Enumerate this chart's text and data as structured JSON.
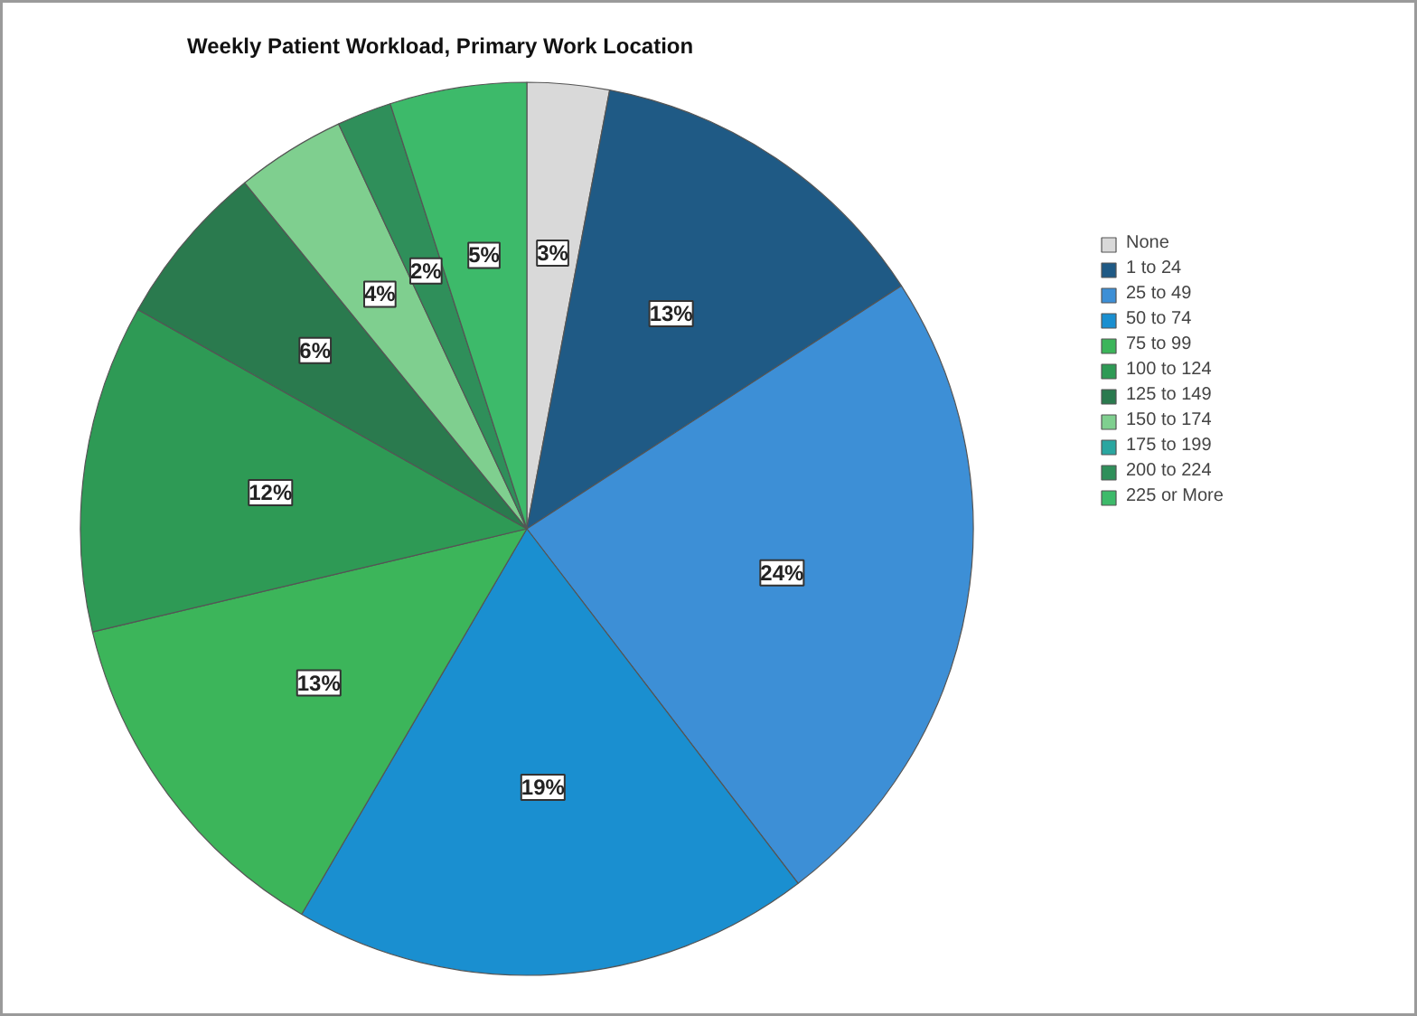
{
  "chart_data": {
    "type": "pie",
    "title": "Weekly Patient Workload, Primary Work Location",
    "categories": [
      "None",
      "1 to 24",
      "25 to 49",
      "50 to 74",
      "75 to 99",
      "100 to 124",
      "125 to 149",
      "150 to 174",
      "175 to 199",
      "200 to 224",
      "225 or More"
    ],
    "values": [
      3,
      13,
      24,
      19,
      13,
      12,
      6,
      4,
      0,
      2,
      5
    ],
    "value_labels": [
      "3%",
      "13%",
      "24%",
      "19%",
      "13%",
      "12%",
      "6%",
      "4%",
      null,
      "2%",
      "5%"
    ],
    "colors": [
      "#d9d9d9",
      "#1f5a85",
      "#3d8fd6",
      "#1a8fd0",
      "#3cb55a",
      "#2e9a55",
      "#2a7a4e",
      "#7fcf8f",
      "#2aa6a0",
      "#2f8f5a",
      "#3dba6a"
    ],
    "legend": "top right"
  }
}
